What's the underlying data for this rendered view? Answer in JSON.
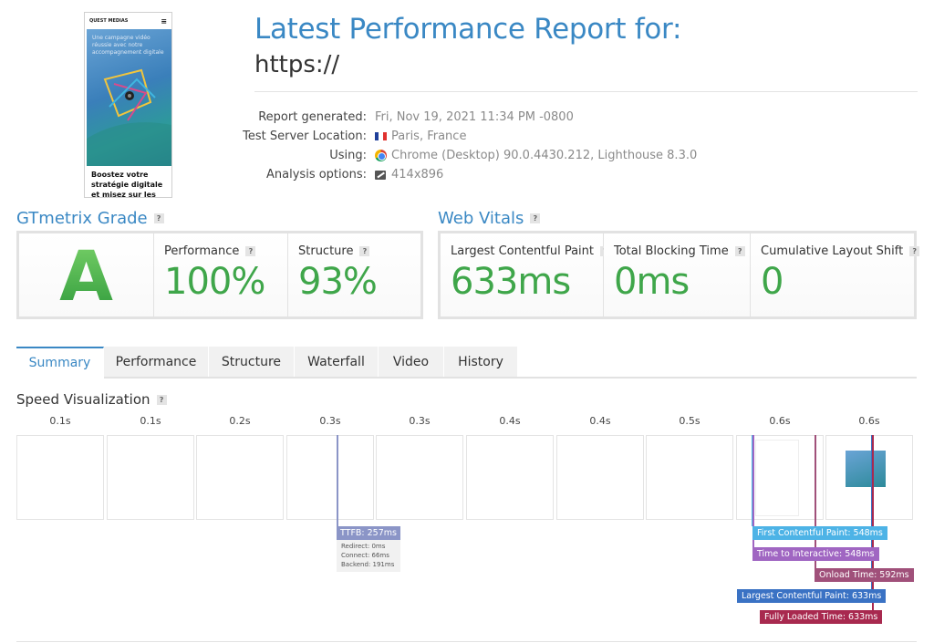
{
  "thumbnail": {
    "brand": "QUEST MEDIAS",
    "headline": "Boostez votre stratégie digitale et misez sur les",
    "overlay_text": "Une campagne vidéo réussie avec notre accompagnement digitale"
  },
  "header": {
    "title": "Latest Performance Report for:",
    "url": "https://"
  },
  "meta": {
    "report_generated_label": "Report generated:",
    "report_generated_value": "Fri, Nov 19, 2021 11:34 PM -0800",
    "server_location_label": "Test Server Location:",
    "server_location_value": "Paris, France",
    "using_label": "Using:",
    "using_value": "Chrome (Desktop) 90.0.4430.212, Lighthouse 8.3.0",
    "analysis_label": "Analysis options:",
    "analysis_value": "414x896",
    "icons": [
      "france-flag-icon",
      "chrome-icon",
      "resize-icon"
    ]
  },
  "grade": {
    "title": "GTmetrix Grade",
    "letter": "A",
    "performance_label": "Performance",
    "performance_value": "100%",
    "structure_label": "Structure",
    "structure_value": "93%"
  },
  "vitals": {
    "title": "Web Vitals",
    "lcp_label": "Largest Contentful Paint",
    "lcp_value": "633ms",
    "tbt_label": "Total Blocking Time",
    "tbt_value": "0ms",
    "cls_label": "Cumulative Layout Shift",
    "cls_value": "0"
  },
  "help_mark": "?",
  "tabs": [
    "Summary",
    "Performance",
    "Structure",
    "Waterfall",
    "Video",
    "History"
  ],
  "active_tab": "Summary",
  "speed": {
    "title": "Speed Visualization",
    "frame_times": [
      "0.1s",
      "0.1s",
      "0.2s",
      "0.3s",
      "0.3s",
      "0.4s",
      "0.4s",
      "0.5s",
      "0.6s",
      "0.6s"
    ],
    "ttfb": {
      "label": "TTFB: 257ms",
      "redirect": "Redirect: 0ms",
      "connect": "Connect: 66ms",
      "backend": "Backend: 191ms",
      "color": "#8b95c7"
    },
    "markers": [
      {
        "label": "First Contentful Paint: 548ms",
        "color": "#4db3e6"
      },
      {
        "label": "Time to Interactive: 548ms",
        "color": "#a066c2"
      },
      {
        "label": "Onload Time: 592ms",
        "color": "#a0507a"
      },
      {
        "label": "Largest Contentful Paint: 633ms",
        "color": "#3a72c4"
      },
      {
        "label": "Fully Loaded Time: 633ms",
        "color": "#a8294f"
      }
    ]
  },
  "colors": {
    "accent": "#3a88c4",
    "good": "#3fa64a"
  }
}
